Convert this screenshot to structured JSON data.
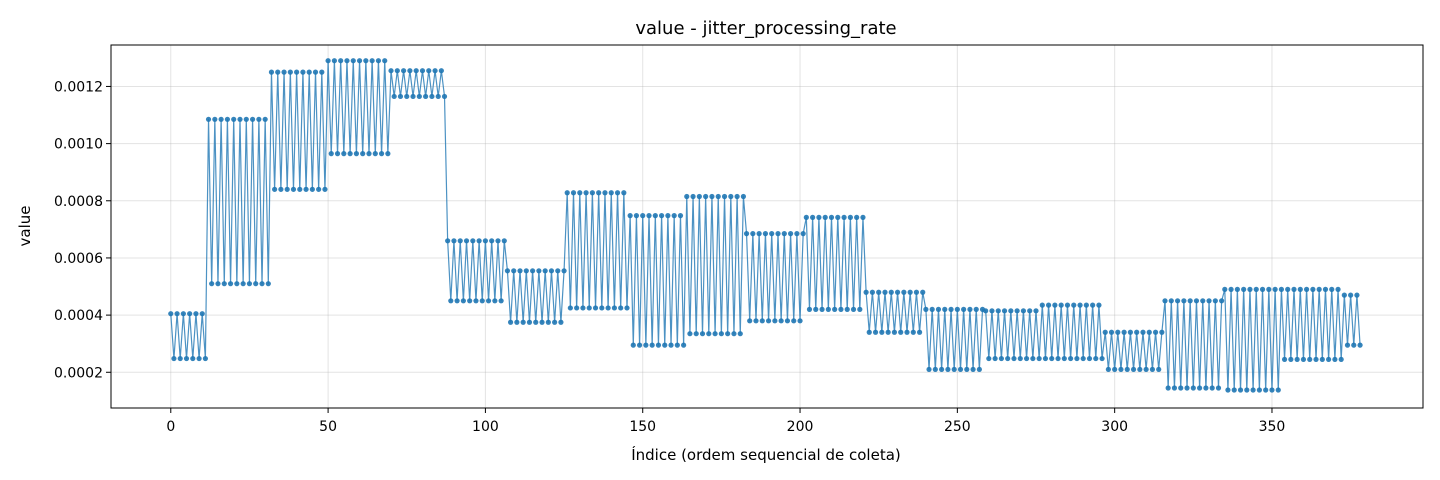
{
  "chart_data": {
    "type": "line",
    "title": "value - jitter_processing_rate",
    "xlabel": "Índice (ordem sequencial de coleta)",
    "ylabel": "value",
    "xlim": [
      -19,
      398
    ],
    "ylim": [
      7.5e-05,
      0.001345
    ],
    "xticks": [
      0,
      50,
      100,
      150,
      200,
      250,
      300,
      350
    ],
    "xtick_labels": [
      "0",
      "50",
      "100",
      "150",
      "200",
      "250",
      "300",
      "350"
    ],
    "yticks": [
      0.0002,
      0.0004,
      0.0006,
      0.0008,
      0.001,
      0.0012
    ],
    "ytick_labels": [
      "0.0002",
      "0.0004",
      "0.0006",
      "0.0008",
      "0.0010",
      "0.0012"
    ],
    "grid": true,
    "color": "#1f77b4",
    "markers": true,
    "pattern": "alternating high/low values within consecutive segments",
    "segments": [
      {
        "start": 0,
        "end": 11,
        "high": 0.000405,
        "low": 0.000248
      },
      {
        "start": 12,
        "end": 31,
        "high": 0.001085,
        "low": 0.00051
      },
      {
        "start": 32,
        "end": 49,
        "high": 0.00125,
        "low": 0.00084
      },
      {
        "start": 50,
        "end": 69,
        "high": 0.00129,
        "low": 0.000965
      },
      {
        "start": 70,
        "end": 87,
        "high": 0.001255,
        "low": 0.001165
      },
      {
        "start": 88,
        "end": 106,
        "high": 0.00066,
        "low": 0.00045
      },
      {
        "start": 107,
        "end": 125,
        "high": 0.000555,
        "low": 0.000375
      },
      {
        "start": 126,
        "end": 145,
        "high": 0.000828,
        "low": 0.000425
      },
      {
        "start": 146,
        "end": 163,
        "high": 0.000748,
        "low": 0.000295
      },
      {
        "start": 164,
        "end": 182,
        "high": 0.000815,
        "low": 0.000335
      },
      {
        "start": 183,
        "end": 201,
        "high": 0.000685,
        "low": 0.00038
      },
      {
        "start": 202,
        "end": 220,
        "high": 0.000742,
        "low": 0.00042
      },
      {
        "start": 221,
        "end": 239,
        "high": 0.00048,
        "low": 0.00034
      },
      {
        "start": 240,
        "end": 258,
        "high": 0.00042,
        "low": 0.00021
      },
      {
        "start": 259,
        "end": 276,
        "high": 0.000415,
        "low": 0.000248
      },
      {
        "start": 277,
        "end": 296,
        "high": 0.000435,
        "low": 0.000248
      },
      {
        "start": 297,
        "end": 315,
        "high": 0.00034,
        "low": 0.00021
      },
      {
        "start": 316,
        "end": 334,
        "high": 0.00045,
        "low": 0.000145
      },
      {
        "start": 335,
        "end": 352,
        "high": 0.00049,
        "low": 0.000138
      },
      {
        "start": 353,
        "end": 372,
        "high": 0.00049,
        "low": 0.000245
      },
      {
        "start": 373,
        "end": 378,
        "high": 0.00047,
        "low": 0.000295
      }
    ]
  }
}
